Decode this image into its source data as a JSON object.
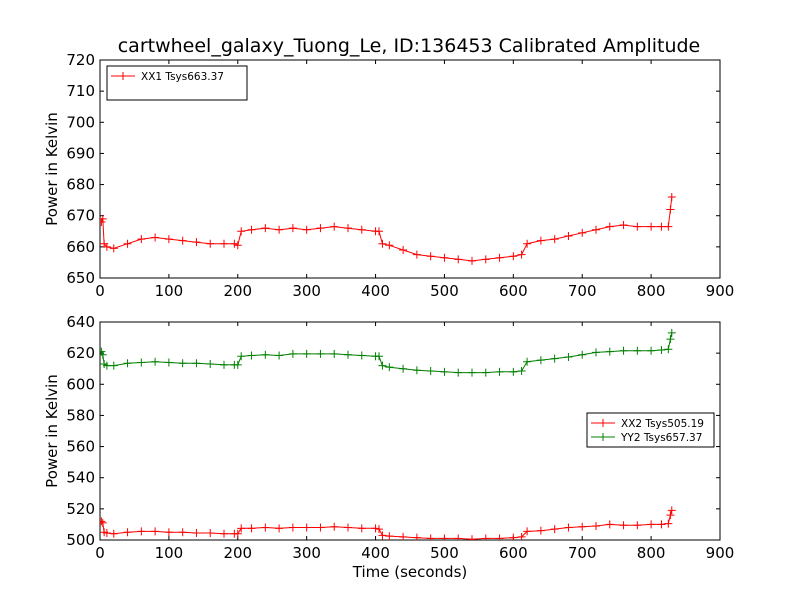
{
  "figure": {
    "title": "cartwheel_galaxy_Tuong_Le, ID:136453 Calibrated Amplitude",
    "xlabel": "Time (seconds)"
  },
  "chart_data": [
    {
      "type": "line",
      "title": "cartwheel_galaxy_Tuong_Le, ID:136453 Calibrated Amplitude",
      "xlabel": "",
      "ylabel": "Power in Kelvin",
      "xlim": [
        0,
        900
      ],
      "ylim": [
        650,
        720
      ],
      "xticks": [
        0,
        100,
        200,
        300,
        400,
        500,
        600,
        700,
        800,
        900
      ],
      "yticks": [
        650,
        660,
        670,
        680,
        690,
        700,
        710,
        720
      ],
      "grid": false,
      "legend": "upper-left",
      "marker": "+",
      "series": [
        {
          "name": "XX1 Tsys663.37",
          "color": "#ff0000",
          "x": [
            2,
            4,
            6,
            10,
            20,
            40,
            60,
            80,
            100,
            120,
            140,
            160,
            180,
            195,
            200,
            205,
            220,
            240,
            260,
            280,
            300,
            320,
            340,
            360,
            380,
            400,
            405,
            410,
            420,
            440,
            460,
            480,
            500,
            520,
            540,
            560,
            580,
            600,
            612,
            620,
            640,
            660,
            680,
            700,
            720,
            740,
            760,
            780,
            800,
            815,
            825,
            828,
            830
          ],
          "y": [
            668,
            669,
            661,
            660,
            659.5,
            661,
            662.5,
            663,
            662.5,
            662,
            661.5,
            661,
            661,
            661,
            660.5,
            665,
            665.5,
            666,
            665.5,
            666,
            665.5,
            666,
            666.5,
            666,
            665.5,
            665,
            665,
            661,
            660.5,
            659,
            657.5,
            657,
            656.5,
            656,
            655.5,
            656,
            656.5,
            657,
            657.5,
            661,
            662,
            662.5,
            663.5,
            664.5,
            665.5,
            666.5,
            667,
            666.5,
            666.5,
            666.5,
            666.5,
            672,
            676
          ]
        }
      ]
    },
    {
      "type": "line",
      "xlabel": "Time (seconds)",
      "ylabel": "Power in Kelvin",
      "xlim": [
        0,
        900
      ],
      "ylim": [
        500,
        640
      ],
      "xticks": [
        0,
        100,
        200,
        300,
        400,
        500,
        600,
        700,
        800,
        900
      ],
      "yticks": [
        500,
        520,
        540,
        560,
        580,
        600,
        620,
        640
      ],
      "grid": false,
      "legend": "center-right",
      "marker": "+",
      "series": [
        {
          "name": "XX2 Tsys505.19",
          "color": "#ff0000",
          "x": [
            2,
            4,
            6,
            10,
            20,
            40,
            60,
            80,
            100,
            120,
            140,
            160,
            180,
            195,
            200,
            205,
            220,
            240,
            260,
            280,
            300,
            320,
            340,
            360,
            380,
            400,
            405,
            410,
            420,
            440,
            460,
            480,
            500,
            520,
            540,
            560,
            580,
            600,
            612,
            620,
            640,
            660,
            680,
            700,
            720,
            740,
            760,
            780,
            800,
            815,
            825,
            828,
            830
          ],
          "y": [
            512,
            511,
            505,
            504.5,
            504,
            505,
            505.5,
            505.5,
            505,
            505,
            504.5,
            504.5,
            504,
            504,
            504,
            507.5,
            507.5,
            508,
            507.5,
            508,
            508,
            508,
            508.5,
            508,
            507.5,
            507.5,
            507,
            503,
            502.5,
            502,
            501.5,
            501,
            501,
            501,
            500.5,
            501,
            501,
            501.5,
            502,
            505.5,
            506,
            507,
            508,
            508.5,
            509,
            510,
            509.5,
            509.5,
            510,
            510,
            510.5,
            516,
            519
          ]
        },
        {
          "name": "YY2 Tsys657.37",
          "color": "#008000",
          "x": [
            2,
            4,
            6,
            10,
            20,
            40,
            60,
            80,
            100,
            120,
            140,
            160,
            180,
            195,
            200,
            205,
            220,
            240,
            260,
            280,
            300,
            320,
            340,
            360,
            380,
            400,
            405,
            410,
            420,
            440,
            460,
            480,
            500,
            520,
            540,
            560,
            580,
            600,
            612,
            620,
            640,
            660,
            680,
            700,
            720,
            740,
            760,
            780,
            800,
            815,
            825,
            828,
            830
          ],
          "y": [
            621,
            619,
            613,
            612,
            612,
            613.5,
            614,
            614.5,
            614,
            613.5,
            613.5,
            613,
            612.5,
            612.5,
            612.5,
            618,
            618.5,
            619,
            618.5,
            619.5,
            619.5,
            619.5,
            619.5,
            619,
            618.5,
            618,
            618,
            612,
            611,
            610,
            609,
            608.5,
            608,
            607.5,
            607.5,
            607.5,
            608,
            608,
            608.5,
            614.5,
            615.5,
            616.5,
            617.5,
            619,
            620.5,
            621,
            621.5,
            621.5,
            621.5,
            622,
            622.5,
            629,
            633
          ]
        }
      ]
    }
  ]
}
